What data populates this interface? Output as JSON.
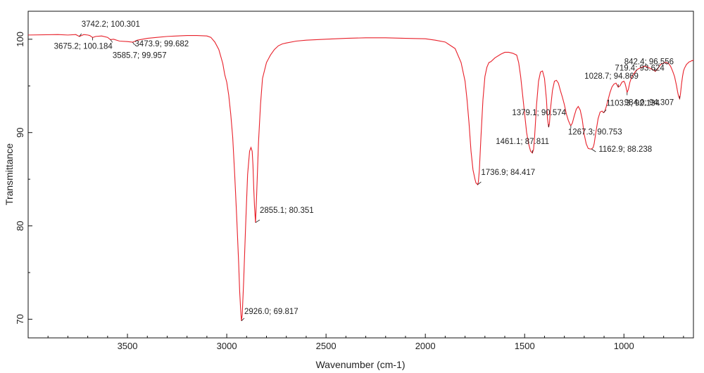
{
  "chart_data": {
    "type": "line",
    "title": "",
    "xlabel": "Wavenumber (cm-1)",
    "ylabel": "Transmittance",
    "xlim": [
      4000,
      650
    ],
    "ylim": [
      68,
      103
    ],
    "x_reversed": true,
    "grid": false,
    "x_ticks": [
      3500,
      3000,
      2500,
      2000,
      1500,
      1000
    ],
    "y_ticks": [
      70,
      80,
      90,
      100
    ],
    "line_color": "#e8202a",
    "series": [
      {
        "x": [
          4000,
          3850,
          3800,
          3760,
          3742.2,
          3720,
          3700,
          3690,
          3675.2,
          3660,
          3630,
          3600,
          3585.7,
          3570,
          3540,
          3500,
          3473.9,
          3450,
          3400,
          3350,
          3300,
          3250,
          3200,
          3150,
          3100,
          3080,
          3060,
          3040,
          3020,
          3010,
          3005,
          3000,
          2990,
          2980,
          2970,
          2960,
          2950,
          2940,
          2935,
          2930,
          2926.0,
          2922,
          2915,
          2905,
          2895,
          2885,
          2878,
          2872,
          2868,
          2864,
          2860,
          2855.1,
          2850,
          2840,
          2830,
          2820,
          2800,
          2780,
          2760,
          2740,
          2720,
          2700,
          2650,
          2600,
          2500,
          2400,
          2300,
          2200,
          2100,
          2000,
          1950,
          1900,
          1850,
          1820,
          1800,
          1790,
          1780,
          1770,
          1760,
          1750,
          1745,
          1740,
          1736.9,
          1733,
          1728,
          1720,
          1710,
          1700,
          1690,
          1680,
          1670,
          1650,
          1620,
          1600,
          1580,
          1560,
          1540,
          1530,
          1520,
          1510,
          1500,
          1490,
          1480,
          1470,
          1465,
          1461.1,
          1455,
          1450,
          1440,
          1430,
          1420,
          1410,
          1400,
          1390,
          1385,
          1379.1,
          1375,
          1370,
          1360,
          1350,
          1340,
          1330,
          1320,
          1310,
          1300,
          1290,
          1280,
          1270,
          1267.3,
          1260,
          1250,
          1240,
          1230,
          1220,
          1210,
          1200,
          1190,
          1180,
          1170,
          1162.9,
          1155,
          1150,
          1140,
          1130,
          1120,
          1110,
          1103.3,
          1098,
          1090,
          1080,
          1070,
          1060,
          1050,
          1040,
          1028.7,
          1020,
          1010,
          1000,
          995,
          990,
          984.0,
          978,
          970,
          960,
          950,
          940,
          930,
          920,
          910,
          900,
          890,
          880,
          870,
          860,
          850,
          842.4,
          835,
          825,
          815,
          805,
          795,
          785,
          775,
          765,
          755,
          745,
          740,
          735,
          730,
          725,
          719.4,
          715,
          710,
          705,
          700,
          695,
          690,
          685,
          680,
          675,
          670,
          665,
          660,
          655,
          650
        ],
        "y": [
          100.45,
          100.5,
          100.45,
          100.5,
          100.301,
          100.5,
          100.45,
          100.4,
          100.184,
          100.3,
          100.35,
          100.2,
          99.957,
          100.0,
          99.8,
          99.75,
          99.682,
          99.9,
          100.1,
          100.2,
          100.3,
          100.35,
          100.4,
          100.4,
          100.35,
          100.2,
          99.7,
          98.9,
          97.4,
          96.2,
          95.8,
          95.4,
          94.0,
          92.0,
          89.5,
          85.5,
          81.0,
          76.0,
          73.0,
          71.0,
          69.817,
          70.5,
          74.0,
          80.0,
          85.5,
          88.0,
          88.4,
          88.0,
          86.5,
          84.0,
          82.0,
          80.351,
          83.0,
          89.0,
          93.0,
          95.8,
          97.5,
          98.3,
          98.9,
          99.3,
          99.5,
          99.6,
          99.8,
          99.9,
          100.0,
          100.1,
          100.15,
          100.15,
          100.1,
          100.05,
          99.9,
          99.7,
          99.0,
          97.5,
          95.5,
          93.5,
          91.0,
          88.0,
          86.0,
          85.0,
          84.6,
          84.5,
          84.417,
          84.7,
          86.0,
          89.5,
          93.5,
          96.0,
          97.0,
          97.5,
          97.6,
          98.0,
          98.4,
          98.6,
          98.6,
          98.5,
          98.3,
          97.5,
          96.0,
          94.0,
          92.0,
          90.0,
          88.8,
          88.0,
          87.9,
          87.811,
          88.2,
          89.5,
          93.0,
          95.5,
          96.5,
          96.6,
          95.8,
          93.5,
          91.5,
          90.574,
          91.0,
          92.5,
          94.5,
          95.5,
          95.6,
          95.3,
          94.5,
          93.8,
          93.0,
          92.0,
          91.3,
          90.8,
          90.753,
          91.0,
          91.8,
          92.5,
          92.8,
          92.4,
          91.4,
          89.8,
          88.8,
          88.3,
          88.24,
          88.238,
          88.4,
          88.8,
          90.2,
          91.5,
          92.2,
          92.3,
          92.134,
          92.2,
          92.7,
          93.5,
          94.3,
          94.9,
          95.2,
          95.3,
          94.869,
          95.0,
          95.4,
          95.5,
          95.3,
          94.9,
          94.307,
          94.6,
          95.4,
          96.0,
          96.3,
          96.6,
          96.8,
          96.9,
          97.0,
          97.1,
          97.1,
          97.0,
          96.9,
          96.8,
          96.7,
          96.556,
          96.7,
          97.0,
          97.3,
          97.4,
          97.5,
          97.5,
          97.4,
          97.1,
          96.6,
          96.0,
          95.5,
          95.0,
          94.4,
          93.9,
          93.624,
          94.2,
          95.2,
          96.0,
          96.6,
          96.9,
          97.1,
          97.3,
          97.4,
          97.5,
          97.6,
          97.6,
          97.7,
          97.7,
          97.8
        ]
      }
    ],
    "annotations": [
      {
        "label": "3742.2; 100.301",
        "x": 3742.2,
        "y": 100.301
      },
      {
        "label": "3675.2; 100.184",
        "x": 3675.2,
        "y": 100.184
      },
      {
        "label": "3473.9; 99.682",
        "x": 3473.9,
        "y": 99.682
      },
      {
        "label": "3585.7; 99.957",
        "x": 3585.7,
        "y": 99.957
      },
      {
        "label": "2855.1; 80.351",
        "x": 2855.1,
        "y": 80.351
      },
      {
        "label": "2926.0; 69.817",
        "x": 2926.0,
        "y": 69.817
      },
      {
        "label": "1736.9; 84.417",
        "x": 1736.9,
        "y": 84.417
      },
      {
        "label": "1461.1; 87.811",
        "x": 1461.1,
        "y": 87.811
      },
      {
        "label": "1379.1; 90.574",
        "x": 1379.1,
        "y": 90.574
      },
      {
        "label": "1267.3; 90.753",
        "x": 1267.3,
        "y": 90.753
      },
      {
        "label": "1162.9; 88.238",
        "x": 1162.9,
        "y": 88.238
      },
      {
        "label": "1103.3; 92.134",
        "x": 1103.3,
        "y": 92.134
      },
      {
        "label": "1028.7; 94.869",
        "x": 1028.7,
        "y": 94.869
      },
      {
        "label": "984.0; 94.307",
        "x": 984.0,
        "y": 94.307
      },
      {
        "label": "842.4; 96.556",
        "x": 842.4,
        "y": 96.556
      },
      {
        "label": "719.4; 93.624",
        "x": 719.4,
        "y": 93.624
      }
    ]
  }
}
